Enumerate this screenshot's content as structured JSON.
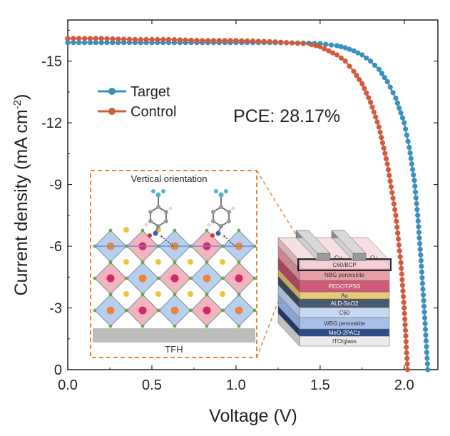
{
  "chart_data": {
    "type": "line",
    "xlabel": "Voltage (V)",
    "ylabel": "Current density (mA cm",
    "ylabel_sup": "-2",
    "ylabel_close": ")",
    "xlim": [
      0.0,
      2.2
    ],
    "ylim": [
      0,
      -17
    ],
    "y_inverted": true,
    "x_ticks": [
      0.0,
      0.5,
      1.0,
      1.5,
      2.0
    ],
    "x_tick_labels": [
      "0.0",
      "0.5",
      "1.0",
      "1.5",
      "2.0"
    ],
    "y_ticks": [
      0,
      -3,
      -6,
      -9,
      -12,
      -15
    ],
    "y_tick_labels": [
      "0",
      "-3",
      "-6",
      "-9",
      "-12",
      "-15"
    ],
    "legend_placement": "top-left",
    "annotation": "PCE: 28.17%",
    "colors": {
      "Target": "#3a8fbf",
      "Control": "#d25a3f"
    },
    "series": [
      {
        "name": "Target",
        "color": "#3a8fbf",
        "x": [
          0.0,
          0.2,
          0.4,
          0.6,
          0.8,
          1.0,
          1.2,
          1.4,
          1.5,
          1.6,
          1.65,
          1.7,
          1.75,
          1.8,
          1.85,
          1.9,
          1.95,
          2.0,
          2.03,
          2.06,
          2.08,
          2.1,
          2.12,
          2.14
        ],
        "y": [
          -15.9,
          -15.9,
          -15.9,
          -15.9,
          -15.9,
          -15.9,
          -15.9,
          -15.88,
          -15.85,
          -15.75,
          -15.65,
          -15.5,
          -15.3,
          -15.0,
          -14.6,
          -14.0,
          -13.2,
          -12.0,
          -10.8,
          -9.2,
          -7.5,
          -5.3,
          -2.8,
          0
        ]
      },
      {
        "name": "Control",
        "color": "#d25a3f",
        "x": [
          0.0,
          0.2,
          0.4,
          0.6,
          0.8,
          1.0,
          1.2,
          1.3,
          1.4,
          1.45,
          1.5,
          1.55,
          1.6,
          1.65,
          1.7,
          1.75,
          1.8,
          1.85,
          1.9,
          1.95,
          1.98,
          2.0,
          2.02
        ],
        "y": [
          -16.1,
          -16.1,
          -16.05,
          -16.05,
          -16.0,
          -16.0,
          -15.95,
          -15.9,
          -15.85,
          -15.8,
          -15.7,
          -15.5,
          -15.3,
          -15.0,
          -14.5,
          -13.9,
          -13.0,
          -11.8,
          -10.0,
          -7.5,
          -5.2,
          -3.0,
          0
        ]
      }
    ]
  },
  "inset": {
    "left_title": "Vertical orientation",
    "left_bottom_label": "TFH",
    "stack_layers": [
      "Cu",
      "C60/BCP",
      "NBG perovskite",
      "PEDOT:PSS",
      "Au",
      "ALD-SnO2",
      "C60",
      "WBG perovskite",
      "MeO-2PACz",
      "ITO/glass"
    ],
    "electrode_labels": [
      "Cu",
      "Cu"
    ],
    "layer_colors": [
      "#8a8a8a",
      "#e8e8e8",
      "#e7a0a8",
      "#cf5a78",
      "#e8c97a",
      "#5a5a5a",
      "#4a6a9a",
      "#c8d8ef",
      "#a8c0e8",
      "#2a4a8a",
      "#bfbfbf"
    ]
  }
}
